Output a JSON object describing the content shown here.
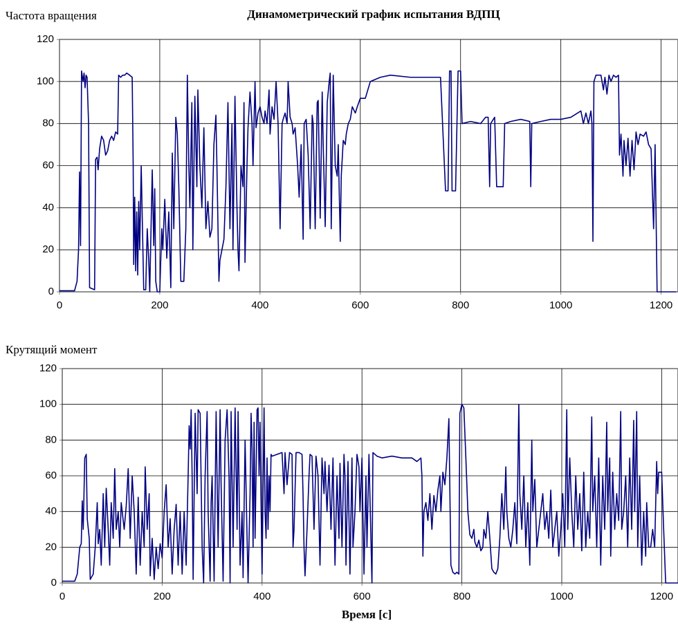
{
  "chart_data": [
    {
      "type": "line",
      "title": "Динамометрический график испытания ВДПЦ",
      "ylabel": "Частота вращения",
      "color": "#000080",
      "grid": true,
      "xlim": [
        0,
        1233
      ],
      "ylim": [
        0,
        120
      ],
      "xticks": [
        0,
        200,
        400,
        600,
        800,
        1000,
        1200
      ],
      "yticks": [
        0,
        20,
        40,
        60,
        80,
        100,
        120
      ],
      "x": [
        0,
        30,
        35,
        38,
        40,
        42,
        44,
        47,
        49,
        51,
        53,
        55,
        58,
        60,
        70,
        72,
        75,
        77,
        80,
        84,
        88,
        92,
        96,
        100,
        104,
        108,
        112,
        116,
        118,
        122,
        126,
        130,
        134,
        140,
        145,
        147,
        148,
        150,
        152,
        154,
        156,
        158,
        160,
        163,
        165,
        168,
        172,
        175,
        178,
        180,
        185,
        188,
        190,
        192,
        195,
        200,
        204,
        206,
        210,
        214,
        218,
        222,
        225,
        228,
        232,
        235,
        238,
        242,
        248,
        252,
        255,
        258,
        260,
        264,
        266,
        270,
        274,
        276,
        280,
        284,
        288,
        292,
        296,
        300,
        304,
        308,
        312,
        314,
        318,
        320,
        324,
        328,
        332,
        336,
        340,
        344,
        346,
        350,
        354,
        356,
        358,
        362,
        366,
        368,
        370,
        374,
        376,
        380,
        384,
        386,
        390,
        392,
        396,
        400,
        404,
        408,
        410,
        414,
        418,
        420,
        424,
        428,
        432,
        436,
        440,
        444,
        446,
        450,
        454,
        456,
        460,
        464,
        466,
        470,
        475,
        478,
        482,
        486,
        488,
        492,
        496,
        500,
        504,
        506,
        510,
        514,
        516,
        520,
        524,
        526,
        530,
        534,
        538,
        540,
        542,
        546,
        550,
        554,
        556,
        560,
        562,
        566,
        570,
        572,
        576,
        580,
        584,
        590,
        594,
        600,
        610,
        620,
        640,
        660,
        700,
        750,
        760,
        770,
        775,
        778,
        781,
        783,
        790,
        795,
        800,
        803,
        820,
        840,
        850,
        855,
        858,
        860,
        868,
        872,
        885,
        888,
        900,
        920,
        938,
        940,
        942,
        960,
        980,
        1000,
        1020,
        1040,
        1045,
        1050,
        1055,
        1060,
        1062,
        1064,
        1066,
        1070,
        1080,
        1085,
        1088,
        1092,
        1096,
        1100,
        1105,
        1110,
        1115,
        1117,
        1120,
        1124,
        1126,
        1130,
        1134,
        1138,
        1142,
        1146,
        1150,
        1154,
        1158,
        1165,
        1170,
        1175,
        1180,
        1185,
        1188,
        1192,
        1200,
        1230
      ],
      "values": [
        0.5,
        0.5,
        5,
        20,
        57,
        22,
        105,
        100,
        104,
        97,
        103,
        102,
        80,
        2,
        1,
        63,
        64,
        58,
        68,
        74,
        72,
        65,
        67,
        72,
        74,
        72,
        76,
        75,
        103,
        102,
        103,
        103,
        104,
        103,
        102,
        60,
        13,
        45,
        10,
        38,
        8,
        43,
        20,
        60,
        36,
        1,
        1,
        30,
        15,
        0,
        58,
        22,
        49,
        5,
        0,
        0,
        30,
        20,
        44,
        16,
        38,
        2,
        66,
        30,
        83,
        75,
        50,
        5,
        5,
        30,
        103,
        60,
        40,
        90,
        20,
        93,
        50,
        96,
        60,
        40,
        78,
        30,
        43,
        26,
        30,
        70,
        84,
        60,
        5,
        15,
        20,
        25,
        50,
        90,
        30,
        80,
        20,
        93,
        40,
        20,
        10,
        60,
        50,
        90,
        14,
        60,
        78,
        95,
        80,
        60,
        100,
        78,
        85,
        88,
        83,
        80,
        86,
        80,
        96,
        75,
        88,
        82,
        100,
        80,
        30,
        80,
        82,
        85,
        80,
        100,
        83,
        80,
        75,
        78,
        60,
        45,
        70,
        25,
        80,
        82,
        65,
        30,
        84,
        80,
        30,
        90,
        91,
        35,
        95,
        70,
        31,
        90,
        100,
        104,
        30,
        103,
        60,
        55,
        70,
        24,
        55,
        72,
        70,
        75,
        80,
        82,
        88,
        85,
        88,
        92,
        92,
        100,
        102,
        103,
        102,
        102,
        102,
        48,
        48,
        105,
        105,
        48,
        48,
        105,
        105,
        80,
        81,
        80,
        83,
        83,
        50,
        80,
        83,
        50,
        50,
        80,
        81,
        82,
        81,
        50,
        80,
        81,
        82,
        82,
        83,
        86,
        80,
        85,
        80,
        86,
        80,
        24,
        100,
        103,
        103,
        96,
        102,
        94,
        103,
        100,
        103,
        102,
        103,
        65,
        75,
        55,
        72,
        60,
        73,
        55,
        72,
        58,
        76,
        70,
        75,
        74,
        76,
        70,
        68,
        30,
        70,
        0,
        0,
        0
      ]
    },
    {
      "type": "line",
      "ylabel": "Крутящий момент",
      "xlabel": "Время [с]",
      "color": "#000080",
      "grid": true,
      "xlim": [
        0,
        1232
      ],
      "ylim": [
        0,
        120
      ],
      "xticks": [
        0,
        200,
        400,
        600,
        800,
        1000,
        1200
      ],
      "yticks": [
        0,
        20,
        40,
        60,
        80,
        100,
        120
      ],
      "x": [
        0,
        25,
        30,
        35,
        38,
        40,
        42,
        45,
        48,
        50,
        54,
        56,
        62,
        66,
        70,
        72,
        75,
        78,
        82,
        85,
        88,
        92,
        95,
        98,
        102,
        105,
        108,
        112,
        115,
        118,
        120,
        124,
        128,
        132,
        136,
        140,
        144,
        148,
        152,
        156,
        160,
        164,
        166,
        170,
        174,
        176,
        180,
        184,
        188,
        192,
        196,
        200,
        204,
        208,
        212,
        216,
        220,
        224,
        228,
        232,
        236,
        240,
        244,
        248,
        252,
        254,
        256,
        258,
        260,
        262,
        266,
        270,
        272,
        276,
        280,
        283,
        286,
        290,
        292,
        296,
        298,
        300,
        304,
        308,
        312,
        316,
        318,
        322,
        326,
        330,
        334,
        336,
        338,
        342,
        346,
        350,
        352,
        356,
        360,
        362,
        366,
        370,
        372,
        376,
        378,
        380,
        382,
        384,
        386,
        390,
        392,
        394,
        396,
        398,
        400,
        404,
        406,
        408,
        410,
        412,
        414,
        416,
        418,
        420,
        430,
        440,
        444,
        446,
        450,
        455,
        460,
        462,
        464,
        468,
        474,
        480,
        482,
        484,
        486,
        490,
        494,
        496,
        500,
        504,
        508,
        512,
        516,
        520,
        524,
        526,
        530,
        534,
        538,
        542,
        546,
        550,
        554,
        556,
        560,
        564,
        566,
        568,
        572,
        576,
        580,
        582,
        586,
        590,
        594,
        596,
        600,
        604,
        608,
        610,
        614,
        620,
        622,
        630,
        640,
        660,
        680,
        700,
        710,
        718,
        720,
        722,
        724,
        728,
        732,
        736,
        740,
        744,
        748,
        752,
        756,
        758,
        762,
        766,
        770,
        774,
        778,
        782,
        786,
        790,
        794,
        796,
        800,
        804,
        808,
        812,
        816,
        820,
        824,
        826,
        830,
        834,
        838,
        842,
        844,
        848,
        852,
        856,
        860,
        864,
        868,
        872,
        876,
        880,
        884,
        888,
        890,
        894,
        898,
        902,
        906,
        910,
        914,
        916,
        920,
        924,
        928,
        932,
        936,
        940,
        942,
        946,
        950,
        954,
        958,
        962,
        966,
        970,
        974,
        978,
        982,
        986,
        990,
        994,
        998,
        1002,
        1006,
        1010,
        1012,
        1016,
        1020,
        1024,
        1028,
        1032,
        1036,
        1040,
        1044,
        1048,
        1052,
        1056,
        1060,
        1062,
        1066,
        1070,
        1074,
        1078,
        1082,
        1086,
        1090,
        1092,
        1096,
        1098,
        1102,
        1106,
        1110,
        1114,
        1118,
        1120,
        1124,
        1128,
        1132,
        1136,
        1140,
        1144,
        1146,
        1150,
        1152,
        1156,
        1160,
        1164,
        1168,
        1170,
        1174,
        1178,
        1182,
        1186,
        1190,
        1192,
        1194,
        1200,
        1204,
        1208,
        1220,
        1235
      ],
      "values": [
        1,
        1,
        5,
        20,
        22,
        46,
        30,
        70,
        72,
        36,
        25,
        2,
        5,
        20,
        45,
        22,
        30,
        10,
        50,
        20,
        53,
        30,
        10,
        45,
        25,
        64,
        30,
        40,
        20,
        45,
        40,
        30,
        43,
        64,
        25,
        60,
        40,
        5,
        48,
        10,
        40,
        20,
        65,
        30,
        50,
        4,
        25,
        2,
        20,
        8,
        22,
        14,
        40,
        55,
        20,
        36,
        5,
        30,
        44,
        10,
        40,
        5,
        40,
        10,
        60,
        88,
        75,
        97,
        60,
        2,
        95,
        50,
        97,
        95,
        20,
        0,
        60,
        96,
        40,
        1,
        45,
        60,
        1,
        96,
        20,
        97,
        55,
        1,
        80,
        97,
        58,
        0,
        96,
        20,
        98,
        30,
        96,
        10,
        40,
        3,
        80,
        25,
        0,
        50,
        95,
        75,
        20,
        90,
        25,
        97,
        98,
        60,
        90,
        45,
        5,
        98,
        40,
        25,
        70,
        30,
        60,
        40,
        72,
        71,
        72,
        73,
        50,
        73,
        55,
        73,
        72,
        20,
        30,
        73,
        73,
        72,
        50,
        20,
        4,
        30,
        60,
        72,
        71,
        30,
        71,
        60,
        10,
        70,
        50,
        68,
        40,
        66,
        30,
        70,
        10,
        60,
        25,
        67,
        20,
        72,
        60,
        10,
        68,
        5,
        70,
        20,
        40,
        72,
        65,
        40,
        70,
        5,
        60,
        20,
        72,
        0,
        73,
        71,
        70,
        71,
        70,
        70,
        68,
        70,
        60,
        15,
        40,
        45,
        35,
        50,
        30,
        49,
        40,
        52,
        60,
        40,
        62,
        55,
        70,
        92,
        10,
        6,
        5,
        6,
        5,
        95,
        100,
        98,
        70,
        40,
        27,
        25,
        30,
        23,
        20,
        24,
        18,
        20,
        30,
        25,
        40,
        25,
        8,
        6,
        5,
        8,
        25,
        50,
        30,
        65,
        40,
        25,
        20,
        30,
        45,
        22,
        100,
        50,
        30,
        60,
        20,
        45,
        10,
        80,
        40,
        58,
        20,
        30,
        40,
        50,
        30,
        40,
        25,
        52,
        20,
        30,
        40,
        15,
        30,
        50,
        20,
        97,
        30,
        70,
        40,
        20,
        60,
        30,
        50,
        18,
        62,
        20,
        40,
        25,
        93,
        40,
        60,
        20,
        70,
        10,
        60,
        30,
        90,
        40,
        70,
        15,
        62,
        30,
        50,
        35,
        96,
        30,
        40,
        60,
        20,
        70,
        30,
        91,
        40,
        96,
        20,
        60,
        10,
        40,
        15,
        45,
        20,
        20,
        30,
        20,
        68,
        50,
        62,
        62,
        30,
        0,
        0,
        0
      ]
    }
  ]
}
